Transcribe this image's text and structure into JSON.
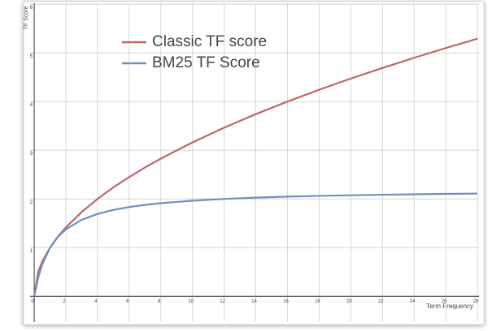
{
  "chart_data": {
    "type": "line",
    "x_label": "Term Frequency",
    "y_label": "TF Score",
    "x": [
      0,
      0.25,
      0.5,
      1,
      1.5,
      2,
      3,
      4,
      5,
      6,
      7,
      8,
      10,
      12,
      14,
      16,
      18,
      20,
      22,
      24,
      26,
      28
    ],
    "series": [
      {
        "name": "Classic TF score",
        "color": "#c0656a",
        "values": [
          0,
          0.5,
          0.707,
          1,
          1.225,
          1.414,
          1.732,
          2,
          2.236,
          2.449,
          2.646,
          2.828,
          3.162,
          3.464,
          3.742,
          4,
          4.243,
          4.472,
          4.69,
          4.899,
          5.099,
          5.292
        ]
      },
      {
        "name": "BM25 TF Score",
        "color": "#6f8fbf",
        "values": [
          0,
          0.379,
          0.647,
          1,
          1.222,
          1.375,
          1.571,
          1.692,
          1.774,
          1.833,
          1.878,
          1.913,
          1.964,
          2,
          2.026,
          2.047,
          2.063,
          2.075,
          2.086,
          2.095,
          2.103,
          2.11
        ]
      }
    ],
    "xlim": [
      -0.26,
      28.1
    ],
    "ylim": [
      -0.53,
      6.02
    ],
    "xticks": [
      0,
      2,
      4,
      6,
      8,
      10,
      12,
      14,
      16,
      18,
      20,
      22,
      24,
      26,
      28
    ],
    "yticks": [
      0,
      1,
      2,
      3,
      4,
      5,
      6
    ],
    "grid": true,
    "legend": "upper left"
  }
}
